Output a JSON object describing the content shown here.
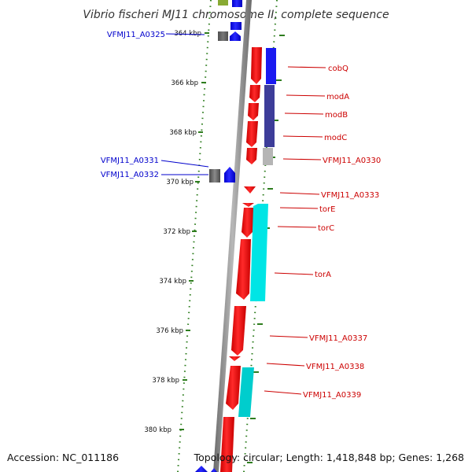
{
  "title": "Vibrio fischeri MJ11 chromosome II, complete sequence",
  "footer": {
    "accession": "Accession: NC_011186",
    "info": "Topology: circular; Length: 1,418,848 bp; Genes: 1,268"
  },
  "colors": {
    "axis": "#808080",
    "tick": "#2e7d1e",
    "forward_gene": "#0000ff",
    "reverse_gene": "#ff0000",
    "pseudo_gene": "#6e6e6e",
    "label_left": "#0000cc",
    "label_right": "#cc0000",
    "cog_blue": "#2020ee",
    "cog_navy": "#40409a",
    "cog_cyan": "#00e5e5",
    "cog_olive": "#88aa33"
  },
  "scale": {
    "labels": [
      "364 kbp",
      "366 kbp",
      "368 kbp",
      "370 kbp",
      "372 kbp",
      "374 kbp",
      "376 kbp",
      "378 kbp",
      "380 kbp"
    ]
  },
  "genes_left": {
    "labels": [
      "VFMJ11_A0325",
      "VFMJ11_A0331",
      "VFMJ11_A0332"
    ]
  },
  "genes_right": {
    "labels": [
      "cobQ",
      "modA",
      "modB",
      "modC",
      "VFMJ11_A0330",
      "VFMJ11_A0333",
      "torE",
      "torC",
      "torA",
      "VFMJ11_A0337",
      "VFMJ11_A0338",
      "VFMJ11_A0339"
    ]
  }
}
